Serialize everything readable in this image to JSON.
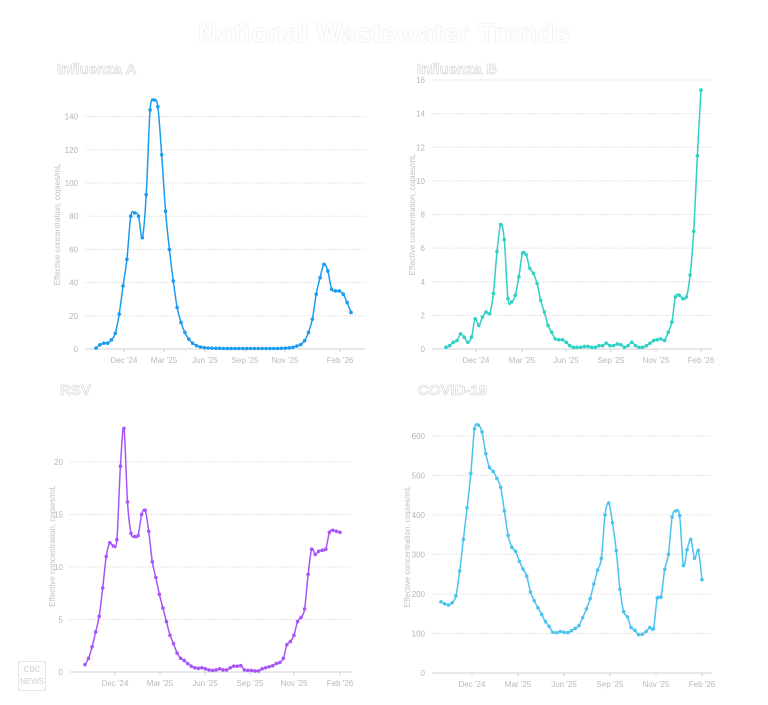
{
  "title": "National Wastewater Trends",
  "logo": {
    "line1": "CBC",
    "line2": "NEWS"
  },
  "chart_data": [
    {
      "type": "line",
      "title": "Influenza A",
      "ylabel": "Effective concentration, copies/mL",
      "xlabel": "",
      "color": "#1a9bf0",
      "ylim": [
        0,
        150
      ],
      "yticks": [
        0,
        20,
        40,
        60,
        80,
        100,
        120,
        140
      ],
      "xticks": [
        "Dec '24",
        "Mar '25",
        "Jun '25",
        "Sep '25",
        "Nov '25",
        "Feb '26"
      ],
      "grid": true,
      "values": [
        0.5,
        2.5,
        3.5,
        3.5,
        5.5,
        9.5,
        21,
        38,
        54,
        80,
        82,
        80,
        67,
        93,
        144,
        150,
        146,
        117,
        83,
        60,
        41,
        25,
        16,
        10,
        6,
        3.5,
        2,
        1.2,
        0.8,
        0.6,
        0.5,
        0.4,
        0.4,
        0.3,
        0.3,
        0.3,
        0.3,
        0.3,
        0.3,
        0.3,
        0.3,
        0.3,
        0.3,
        0.3,
        0.3,
        0.3,
        0.3,
        0.3,
        0.4,
        0.5,
        0.7,
        1,
        1.8,
        2.7,
        5,
        10,
        18,
        33,
        43,
        51,
        47,
        36,
        35,
        35,
        33,
        28,
        22
      ]
    },
    {
      "type": "line",
      "title": "Influenza B",
      "ylabel": "Effective concentration, copies/mL",
      "xlabel": "",
      "color": "#2ed1c4",
      "ylim": [
        0,
        16
      ],
      "yticks": [
        0,
        2,
        4,
        6,
        8,
        10,
        12,
        14,
        16
      ],
      "xticks": [
        "Dec '24",
        "Mar '25",
        "Jun '25",
        "Sep '25",
        "Nov '25",
        "Feb '26"
      ],
      "grid": true,
      "values": [
        0.1,
        0.2,
        0.4,
        0.5,
        0.9,
        0.7,
        0.4,
        0.7,
        1.8,
        1.4,
        1.9,
        2.2,
        2.1,
        3.3,
        5.8,
        7.4,
        6.5,
        3.0,
        2.8,
        3.2,
        4.3,
        5.7,
        5.6,
        4.8,
        4.5,
        3.9,
        2.9,
        2.2,
        1.4,
        1.0,
        0.6,
        0.55,
        0.55,
        0.4,
        0.2,
        0.1,
        0.1,
        0.1,
        0.15,
        0.15,
        0.1,
        0.1,
        0.2,
        0.2,
        0.35,
        0.2,
        0.2,
        0.3,
        0.25,
        0.1,
        0.2,
        0.4,
        0.2,
        0.1,
        0.1,
        0.2,
        0.35,
        0.5,
        0.55,
        0.6,
        0.5,
        1.0,
        1.6,
        3.1,
        3.2,
        3.0,
        3.1,
        4.4,
        7.0,
        11.5,
        15.4
      ]
    },
    {
      "type": "line",
      "title": "RSV",
      "ylabel": "Effective concentration, copies/mL",
      "xlabel": "",
      "color": "#a855f7",
      "ylim": [
        0,
        24
      ],
      "yticks": [
        0,
        5,
        10,
        15,
        20
      ],
      "xticks": [
        "Dec '24",
        "Mar '25",
        "Jun '25",
        "Sep '25",
        "Nov '25",
        "Feb '26"
      ],
      "grid": true,
      "values": [
        0.7,
        1.3,
        2.4,
        3.8,
        5.3,
        8.0,
        11.0,
        12.3,
        12.0,
        12.6,
        19.6,
        23.2,
        16.2,
        13.2,
        12.9,
        13.0,
        15.0,
        15.4,
        13.4,
        10.5,
        9.0,
        7.4,
        6.1,
        4.8,
        3.5,
        2.7,
        1.8,
        1.3,
        1.1,
        0.8,
        0.55,
        0.4,
        0.35,
        0.4,
        0.3,
        0.2,
        0.15,
        0.2,
        0.3,
        0.2,
        0.2,
        0.4,
        0.55,
        0.55,
        0.6,
        0.2,
        0.15,
        0.15,
        0.1,
        0.1,
        0.3,
        0.4,
        0.5,
        0.6,
        0.8,
        0.9,
        1.3,
        2.6,
        2.9,
        3.5,
        4.8,
        5.2,
        6.0,
        9.3,
        11.7,
        11.2,
        11.5,
        11.6,
        11.7,
        13.3,
        13.5,
        13.4,
        13.3
      ]
    },
    {
      "type": "line",
      "title": "COVID-19",
      "ylabel": "Effective concentration, copies/mL",
      "xlabel": "",
      "color": "#4cc3ef",
      "ylim": [
        0,
        640
      ],
      "yticks": [
        0,
        100,
        200,
        300,
        400,
        500,
        600
      ],
      "xticks": [
        "Dec '24",
        "Mar '25",
        "Jun '25",
        "Sep '25",
        "Nov '25",
        "Feb '26"
      ],
      "grid": true,
      "values": [
        180,
        175,
        172,
        178,
        195,
        258,
        338,
        418,
        505,
        618,
        627,
        610,
        555,
        520,
        510,
        492,
        470,
        410,
        348,
        318,
        308,
        283,
        263,
        245,
        205,
        183,
        165,
        148,
        130,
        118,
        103,
        102,
        105,
        103,
        102,
        107,
        113,
        120,
        140,
        162,
        188,
        225,
        260,
        290,
        400,
        430,
        380,
        310,
        212,
        155,
        142,
        115,
        108,
        97,
        98,
        105,
        115,
        112,
        190,
        192,
        262,
        300,
        395,
        410,
        398,
        272,
        312,
        338,
        290,
        310,
        236
      ]
    }
  ]
}
